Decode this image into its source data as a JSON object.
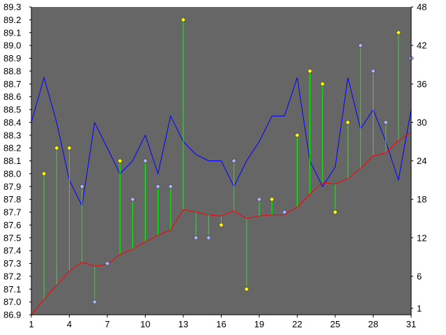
{
  "colors": {
    "page_background": "#ffffff",
    "plot_background": "#666666",
    "blue_line": "#0000ff",
    "red_line": "#ff0000",
    "drop_lines": "#00ff00",
    "marker_yellow": "#ffff00",
    "marker_lavender": "#b0b0ff",
    "marker_stroke": "#404040",
    "axis_text": "#000000"
  },
  "chart_data": {
    "type": "line",
    "title": "",
    "xlabel": "",
    "ylabel": "",
    "y2label": "",
    "grid": false,
    "legend": "none",
    "x": [
      1,
      2,
      3,
      4,
      5,
      6,
      7,
      8,
      9,
      10,
      11,
      12,
      13,
      14,
      15,
      16,
      17,
      18,
      19,
      20,
      21,
      22,
      23,
      24,
      25,
      26,
      27,
      28,
      29,
      30,
      31
    ],
    "xlim": [
      1,
      31
    ],
    "x_ticks": [
      "1",
      "4",
      "7",
      "10",
      "13",
      "16",
      "19",
      "22",
      "25",
      "28",
      "31"
    ],
    "ylim": [
      86.9,
      89.3
    ],
    "y_ticks": [
      "86.9",
      "87.0",
      "87.1",
      "87.2",
      "87.3",
      "87.4",
      "87.5",
      "87.6",
      "87.7",
      "87.8",
      "87.9",
      "88.0",
      "88.1",
      "88.2",
      "88.3",
      "88.4",
      "88.5",
      "88.6",
      "88.7",
      "88.8",
      "88.9",
      "89.0",
      "89.1",
      "89.2",
      "89.3"
    ],
    "y2lim": [
      0,
      48
    ],
    "y2_ticks": [
      "1",
      "6",
      "12",
      "18",
      "24",
      "30",
      "36",
      "42",
      "48"
    ],
    "series": [
      {
        "axis": "left",
        "style": "markers",
        "values": [
          null,
          88.0,
          88.2,
          88.2,
          87.9,
          87.0,
          87.3,
          88.1,
          87.8,
          88.1,
          87.9,
          87.9,
          89.2,
          87.5,
          87.5,
          87.6,
          88.1,
          87.1,
          87.8,
          87.8,
          87.7,
          88.3,
          88.8,
          88.7,
          87.7,
          88.4,
          89.0,
          88.8,
          88.4,
          89.1,
          88.9
        ],
        "marker_colors": [
          "",
          "yellow",
          "yellow",
          "yellow",
          "lavender",
          "lavender",
          "lavender",
          "yellow",
          "lavender",
          "lavender",
          "lavender",
          "lavender",
          "yellow",
          "lavender",
          "lavender",
          "yellow",
          "lavender",
          "yellow",
          "lavender",
          "yellow",
          "lavender",
          "yellow",
          "yellow",
          "yellow",
          "yellow",
          "yellow",
          "lavender",
          "lavender",
          "lavender",
          "yellow",
          "lavender"
        ]
      },
      {
        "axis": "left",
        "style": "line",
        "color": "red",
        "values": [
          86.9,
          87.02,
          87.13,
          87.24,
          87.31,
          87.28,
          87.29,
          87.37,
          87.41,
          87.47,
          87.52,
          87.56,
          87.72,
          87.7,
          87.68,
          87.67,
          87.71,
          87.65,
          87.67,
          87.68,
          87.68,
          87.74,
          87.84,
          87.93,
          87.92,
          87.96,
          88.04,
          88.14,
          88.16,
          88.26,
          88.32
        ]
      },
      {
        "axis": "right",
        "style": "line",
        "color": "blue",
        "values": [
          30,
          37,
          30,
          21,
          17,
          30,
          26,
          22,
          24,
          28,
          22,
          31,
          27,
          25,
          24,
          24,
          20,
          24,
          27,
          31,
          31,
          37,
          24,
          20,
          23,
          37,
          29,
          32,
          27,
          21,
          32
        ]
      }
    ]
  }
}
